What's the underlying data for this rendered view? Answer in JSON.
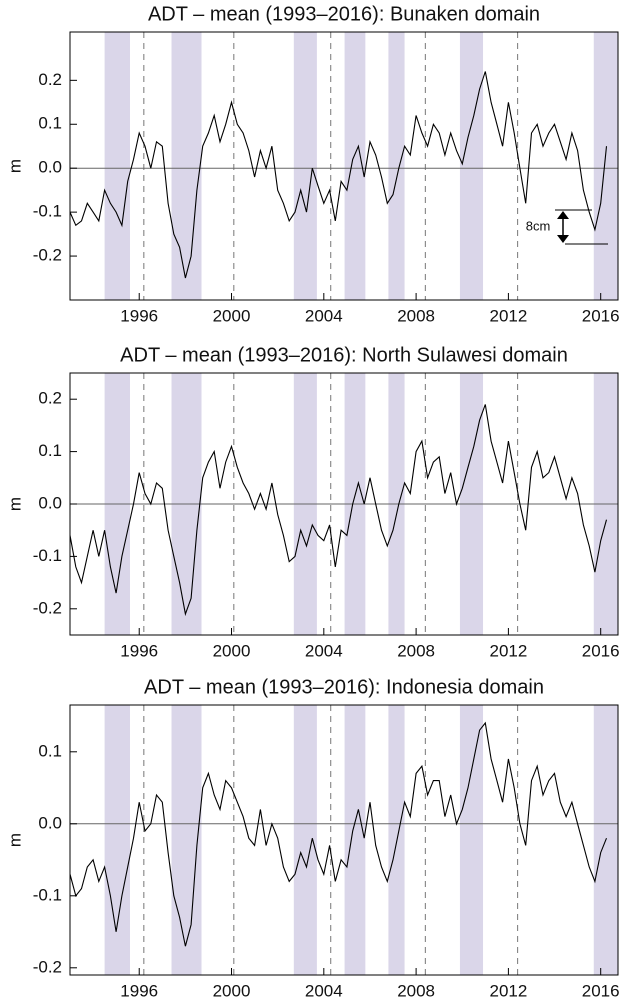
{
  "chart_data": [
    {
      "type": "line",
      "title": "ADT – mean (1993–2016): Bunaken domain",
      "ylabel": "m",
      "color": "#000000",
      "shade_color": "#dad6e9",
      "dash_color": "#777777",
      "xlim": [
        1993,
        2016.75
      ],
      "xticks": [
        1996,
        2000,
        2004,
        2008,
        2012,
        2016
      ],
      "ylim": [
        -0.3,
        0.31
      ],
      "yticks": [
        0.2,
        0.1,
        {
          "value": 0,
          "label": "0.0"
        },
        -0.1,
        -0.2
      ],
      "zero_line": true,
      "shaded_spans": [
        [
          1994.5,
          1995.6
        ],
        [
          1997.4,
          1998.7
        ],
        [
          2002.7,
          2003.7
        ],
        [
          2004.9,
          2005.8
        ],
        [
          2006.8,
          2007.5
        ],
        [
          2009.9,
          2010.9
        ],
        [
          2015.7,
          2016.75
        ]
      ],
      "dashed_lines": [
        1996.2,
        2000.1,
        2004.3,
        2008.4,
        2012.4
      ],
      "annotation": "8cm",
      "x": [
        1993,
        1993.25,
        1993.5,
        1993.75,
        1994,
        1994.25,
        1994.5,
        1994.75,
        1995,
        1995.25,
        1995.5,
        1995.75,
        1996,
        1996.25,
        1996.5,
        1996.75,
        1997,
        1997.25,
        1997.5,
        1997.75,
        1998,
        1998.25,
        1998.5,
        1998.75,
        1999,
        1999.25,
        1999.5,
        1999.75,
        2000,
        2000.25,
        2000.5,
        2000.75,
        2001,
        2001.25,
        2001.5,
        2001.75,
        2002,
        2002.25,
        2002.5,
        2002.75,
        2003,
        2003.25,
        2003.5,
        2003.75,
        2004,
        2004.25,
        2004.5,
        2004.75,
        2005,
        2005.25,
        2005.5,
        2005.75,
        2006,
        2006.25,
        2006.5,
        2006.75,
        2007,
        2007.25,
        2007.5,
        2007.75,
        2008,
        2008.25,
        2008.5,
        2008.75,
        2009,
        2009.25,
        2009.5,
        2009.75,
        2010,
        2010.25,
        2010.5,
        2010.75,
        2011,
        2011.25,
        2011.5,
        2011.75,
        2012,
        2012.25,
        2012.5,
        2012.75,
        2013,
        2013.25,
        2013.5,
        2013.75,
        2014,
        2014.25,
        2014.5,
        2014.75,
        2015,
        2015.25,
        2015.5,
        2015.75,
        2016,
        2016.25
      ],
      "values": [
        -0.1,
        -0.13,
        -0.12,
        -0.08,
        -0.1,
        -0.12,
        -0.05,
        -0.08,
        -0.1,
        -0.13,
        -0.03,
        0.02,
        0.08,
        0.05,
        0.0,
        0.06,
        0.05,
        -0.08,
        -0.15,
        -0.18,
        -0.25,
        -0.2,
        -0.05,
        0.05,
        0.08,
        0.12,
        0.06,
        0.1,
        0.15,
        0.1,
        0.08,
        0.04,
        -0.02,
        0.04,
        0.0,
        0.05,
        -0.05,
        -0.08,
        -0.12,
        -0.1,
        -0.05,
        -0.1,
        0.0,
        -0.04,
        -0.08,
        -0.05,
        -0.12,
        -0.03,
        -0.05,
        0.02,
        0.05,
        -0.02,
        0.06,
        0.03,
        -0.02,
        -0.08,
        -0.06,
        0.0,
        0.05,
        0.03,
        0.12,
        0.08,
        0.05,
        0.1,
        0.08,
        0.03,
        0.08,
        0.04,
        0.01,
        0.07,
        0.12,
        0.18,
        0.22,
        0.15,
        0.1,
        0.05,
        0.15,
        0.08,
        0.0,
        -0.08,
        0.08,
        0.1,
        0.05,
        0.08,
        0.1,
        0.06,
        0.02,
        0.08,
        0.04,
        -0.05,
        -0.1,
        -0.14,
        -0.08,
        0.05
      ]
    },
    {
      "type": "line",
      "title": "ADT – mean (1993–2016): North Sulawesi domain",
      "ylabel": "m",
      "color": "#000000",
      "shade_color": "#dad6e9",
      "dash_color": "#777777",
      "xlim": [
        1993,
        2016.75
      ],
      "xticks": [
        1996,
        2000,
        2004,
        2008,
        2012,
        2016
      ],
      "ylim": [
        -0.25,
        0.25
      ],
      "yticks": [
        0.2,
        0.1,
        {
          "value": 0,
          "label": "0.0"
        },
        -0.1,
        -0.2
      ],
      "zero_line": true,
      "shaded_spans": [
        [
          1994.5,
          1995.6
        ],
        [
          1997.4,
          1998.7
        ],
        [
          2002.7,
          2003.7
        ],
        [
          2004.9,
          2005.8
        ],
        [
          2006.8,
          2007.5
        ],
        [
          2009.9,
          2010.9
        ],
        [
          2015.7,
          2016.75
        ]
      ],
      "dashed_lines": [
        1996.2,
        2000.1,
        2004.3,
        2008.4,
        2012.4
      ],
      "x": [
        1993,
        1993.25,
        1993.5,
        1993.75,
        1994,
        1994.25,
        1994.5,
        1994.75,
        1995,
        1995.25,
        1995.5,
        1995.75,
        1996,
        1996.25,
        1996.5,
        1996.75,
        1997,
        1997.25,
        1997.5,
        1997.75,
        1998,
        1998.25,
        1998.5,
        1998.75,
        1999,
        1999.25,
        1999.5,
        1999.75,
        2000,
        2000.25,
        2000.5,
        2000.75,
        2001,
        2001.25,
        2001.5,
        2001.75,
        2002,
        2002.25,
        2002.5,
        2002.75,
        2003,
        2003.25,
        2003.5,
        2003.75,
        2004,
        2004.25,
        2004.5,
        2004.75,
        2005,
        2005.25,
        2005.5,
        2005.75,
        2006,
        2006.25,
        2006.5,
        2006.75,
        2007,
        2007.25,
        2007.5,
        2007.75,
        2008,
        2008.25,
        2008.5,
        2008.75,
        2009,
        2009.25,
        2009.5,
        2009.75,
        2010,
        2010.25,
        2010.5,
        2010.75,
        2011,
        2011.25,
        2011.5,
        2011.75,
        2012,
        2012.25,
        2012.5,
        2012.75,
        2013,
        2013.25,
        2013.5,
        2013.75,
        2014,
        2014.25,
        2014.5,
        2014.75,
        2015,
        2015.25,
        2015.5,
        2015.75,
        2016,
        2016.25
      ],
      "values": [
        -0.06,
        -0.12,
        -0.15,
        -0.1,
        -0.05,
        -0.1,
        -0.05,
        -0.12,
        -0.17,
        -0.1,
        -0.05,
        0.0,
        0.06,
        0.02,
        0.0,
        0.04,
        0.03,
        -0.05,
        -0.1,
        -0.15,
        -0.21,
        -0.18,
        -0.05,
        0.05,
        0.08,
        0.1,
        0.03,
        0.08,
        0.11,
        0.07,
        0.04,
        0.02,
        -0.01,
        0.02,
        -0.01,
        0.04,
        -0.02,
        -0.06,
        -0.11,
        -0.1,
        -0.05,
        -0.08,
        -0.04,
        -0.06,
        -0.07,
        -0.04,
        -0.12,
        -0.05,
        -0.06,
        0.0,
        0.04,
        0.0,
        0.05,
        0.0,
        -0.05,
        -0.08,
        -0.05,
        0.0,
        0.04,
        0.02,
        0.1,
        0.12,
        0.05,
        0.08,
        0.09,
        0.02,
        0.06,
        0.0,
        0.03,
        0.07,
        0.11,
        0.16,
        0.19,
        0.12,
        0.08,
        0.04,
        0.12,
        0.06,
        0.0,
        -0.05,
        0.07,
        0.1,
        0.05,
        0.06,
        0.09,
        0.05,
        0.01,
        0.05,
        0.02,
        -0.04,
        -0.08,
        -0.13,
        -0.07,
        -0.03
      ]
    },
    {
      "type": "line",
      "title": "ADT – mean (1993–2016): Indonesia domain",
      "ylabel": "m",
      "color": "#000000",
      "shade_color": "#dad6e9",
      "dash_color": "#777777",
      "xlim": [
        1993,
        2016.75
      ],
      "xticks": [
        1996,
        2000,
        2004,
        2008,
        2012,
        2016
      ],
      "ylim": [
        -0.21,
        0.165
      ],
      "yticks": [
        0.1,
        {
          "value": 0,
          "label": "0.0"
        },
        -0.1,
        -0.2
      ],
      "zero_line": true,
      "shaded_spans": [
        [
          1994.5,
          1995.6
        ],
        [
          1997.4,
          1998.7
        ],
        [
          2002.7,
          2003.7
        ],
        [
          2004.9,
          2005.8
        ],
        [
          2006.8,
          2007.5
        ],
        [
          2009.9,
          2010.9
        ],
        [
          2015.7,
          2016.75
        ]
      ],
      "dashed_lines": [
        1996.2,
        2000.1,
        2004.3,
        2008.4,
        2012.4
      ],
      "x": [
        1993,
        1993.25,
        1993.5,
        1993.75,
        1994,
        1994.25,
        1994.5,
        1994.75,
        1995,
        1995.25,
        1995.5,
        1995.75,
        1996,
        1996.25,
        1996.5,
        1996.75,
        1997,
        1997.25,
        1997.5,
        1997.75,
        1998,
        1998.25,
        1998.5,
        1998.75,
        1999,
        1999.25,
        1999.5,
        1999.75,
        2000,
        2000.25,
        2000.5,
        2000.75,
        2001,
        2001.25,
        2001.5,
        2001.75,
        2002,
        2002.25,
        2002.5,
        2002.75,
        2003,
        2003.25,
        2003.5,
        2003.75,
        2004,
        2004.25,
        2004.5,
        2004.75,
        2005,
        2005.25,
        2005.5,
        2005.75,
        2006,
        2006.25,
        2006.5,
        2006.75,
        2007,
        2007.25,
        2007.5,
        2007.75,
        2008,
        2008.25,
        2008.5,
        2008.75,
        2009,
        2009.25,
        2009.5,
        2009.75,
        2010,
        2010.25,
        2010.5,
        2010.75,
        2011,
        2011.25,
        2011.5,
        2011.75,
        2012,
        2012.25,
        2012.5,
        2012.75,
        2013,
        2013.25,
        2013.5,
        2013.75,
        2014,
        2014.25,
        2014.5,
        2014.75,
        2015,
        2015.25,
        2015.5,
        2015.75,
        2016,
        2016.25
      ],
      "values": [
        -0.07,
        -0.1,
        -0.09,
        -0.06,
        -0.05,
        -0.08,
        -0.06,
        -0.1,
        -0.15,
        -0.1,
        -0.06,
        -0.02,
        0.03,
        -0.01,
        0.0,
        0.04,
        0.03,
        -0.04,
        -0.1,
        -0.13,
        -0.17,
        -0.14,
        -0.03,
        0.05,
        0.07,
        0.04,
        0.02,
        0.06,
        0.05,
        0.03,
        0.01,
        -0.02,
        -0.03,
        0.02,
        -0.03,
        0.0,
        -0.02,
        -0.06,
        -0.08,
        -0.07,
        -0.04,
        -0.06,
        -0.02,
        -0.05,
        -0.07,
        -0.03,
        -0.08,
        -0.05,
        -0.06,
        -0.01,
        0.02,
        -0.02,
        0.03,
        -0.03,
        -0.06,
        -0.08,
        -0.05,
        -0.01,
        0.03,
        0.01,
        0.07,
        0.08,
        0.04,
        0.06,
        0.06,
        0.01,
        0.04,
        0.0,
        0.02,
        0.05,
        0.09,
        0.13,
        0.14,
        0.09,
        0.06,
        0.03,
        0.09,
        0.05,
        0.0,
        -0.03,
        0.06,
        0.08,
        0.04,
        0.06,
        0.07,
        0.03,
        0.01,
        0.03,
        0.0,
        -0.03,
        -0.06,
        -0.08,
        -0.04,
        -0.02
      ]
    }
  ]
}
